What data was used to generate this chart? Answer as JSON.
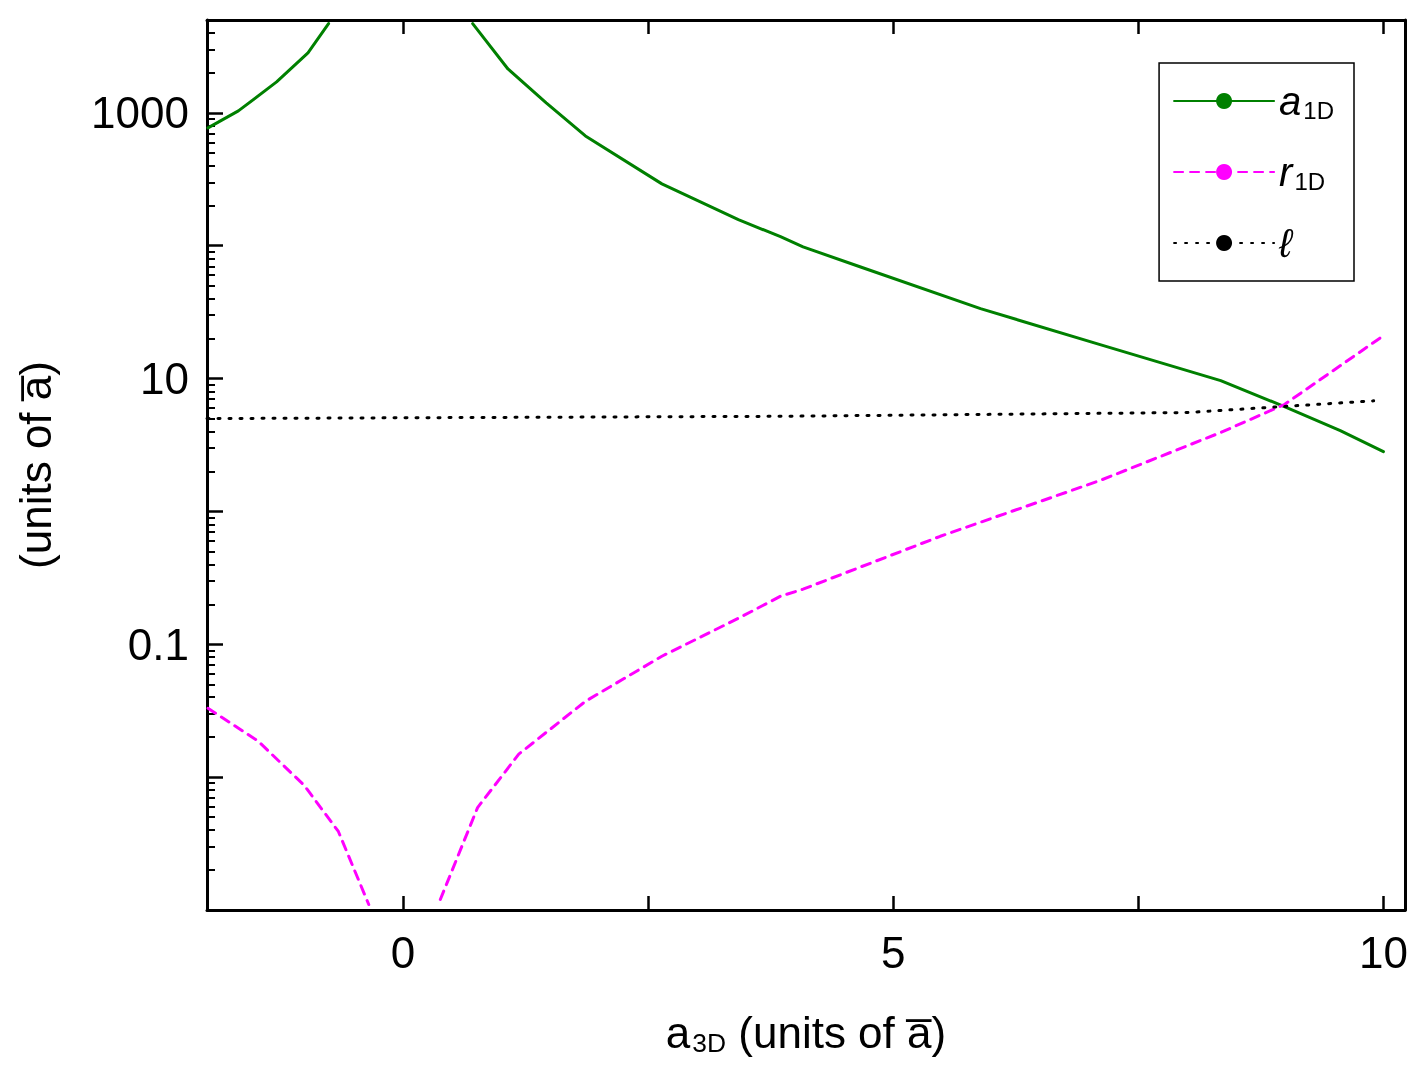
{
  "chart_data": {
    "type": "line",
    "xlabel": "a$_{3D}$ (units of a̅)",
    "ylabel": "(units of a̅)",
    "log": "y",
    "marker": "none",
    "legend": "top right",
    "xlim": [
      -2,
      10.22
    ],
    "xticks": [
      0,
      {
        "value": 2.5,
        "label": null
      },
      5,
      {
        "value": 7.5,
        "label": null
      },
      10
    ],
    "ylim": [
      0.001,
      5000
    ],
    "yticks": [
      {
        "value": 0.01,
        "label": null
      },
      0.1,
      {
        "value": 1,
        "label": null
      },
      10,
      {
        "value": 100,
        "label": null
      },
      1000
    ],
    "series": [
      {
        "name": "a$_{1D}$",
        "color": "#008000",
        "line_style": "solid",
        "x": [
          -1.99,
          -1.68,
          -1.29,
          -0.97,
          -0.76,
          0,
          0.71,
          1.07,
          1.46,
          1.86,
          2.64,
          3.42,
          3.85,
          4.08,
          4.66,
          5.89,
          7.11,
          8.34,
          8.99,
          9.56,
          10
        ],
        "values": [
          771,
          1035,
          1710,
          2825,
          4700,
          null,
          4700,
          2140,
          1190,
          670,
          292,
          157,
          117,
          98,
          69.5,
          33.6,
          18,
          9.66,
          6.15,
          4.06,
          2.82
        ]
      },
      {
        "name": "r$_{1D}$",
        "color": "#ff00ff",
        "line_style": "dashed",
        "x": [
          -1.99,
          -1.48,
          -1.01,
          -0.66,
          -0.35,
          0,
          0.38,
          0.76,
          1.18,
          1.86,
          2.64,
          3.42,
          3.85,
          4.08,
          5.48,
          7.11,
          8.34,
          8.99,
          9.97
        ],
        "values": [
          0.033,
          0.0187,
          0.0087,
          0.0039,
          0.0011,
          null,
          0.0012,
          0.0059,
          0.0149,
          0.0372,
          0.0813,
          0.157,
          0.23,
          0.26,
          0.65,
          1.71,
          3.93,
          6.38,
          20.3
        ]
      },
      {
        "name": "ℓ",
        "color": "#000000",
        "line_style": "dotted",
        "x": [
          -2,
          3.85,
          8,
          9.9
        ],
        "values": [
          5.0,
          5.2,
          5.55,
          6.8
        ]
      }
    ]
  }
}
